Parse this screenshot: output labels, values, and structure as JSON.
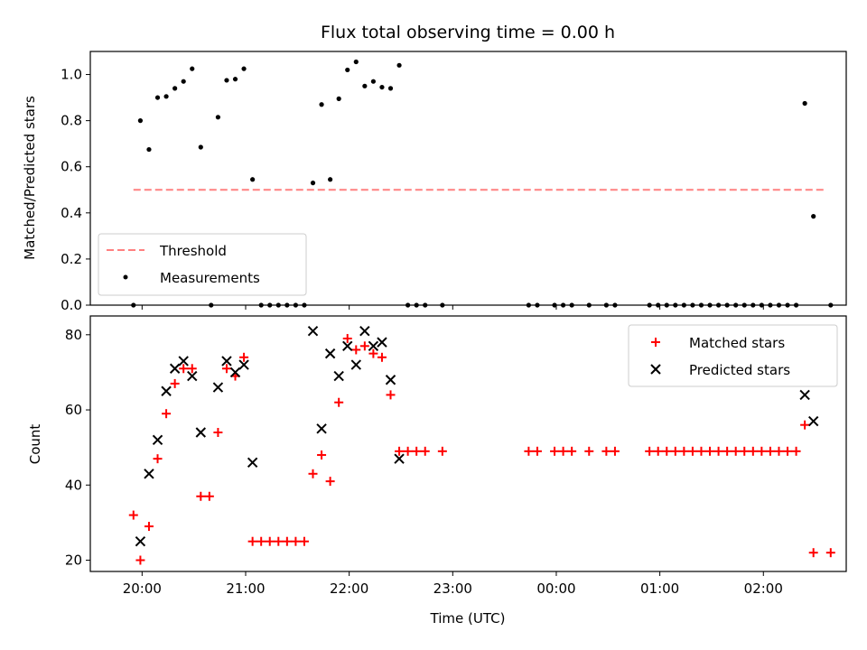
{
  "chart_data": [
    {
      "type": "scatter",
      "title": "Flux total observing time = 0.00 h",
      "xlabel": "",
      "ylabel": "Matched/Predicted stars",
      "ylim": [
        0,
        1.1
      ],
      "yticks": [
        0.0,
        0.2,
        0.4,
        0.6,
        0.8,
        1.0
      ],
      "ytick_labels": [
        "0.0",
        "0.2",
        "0.4",
        "0.6",
        "0.8",
        "1.0"
      ],
      "legend_position": "lower-left",
      "grid": false,
      "threshold": {
        "name": "Threshold",
        "value": 0.5,
        "x_start": "19:55",
        "x_end": "02:35",
        "color": "#ff8080",
        "style": "dashed"
      },
      "series": [
        {
          "name": "Measurements",
          "color": "#000000",
          "marker": "dot",
          "points": [
            [
              "19:55",
              0.0
            ],
            [
              "19:59",
              0.8
            ],
            [
              "20:04",
              0.675
            ],
            [
              "20:09",
              0.9
            ],
            [
              "20:14",
              0.905
            ],
            [
              "20:19",
              0.94
            ],
            [
              "20:24",
              0.97
            ],
            [
              "20:29",
              1.025
            ],
            [
              "20:34",
              0.685
            ],
            [
              "20:40",
              0.0
            ],
            [
              "20:44",
              0.815
            ],
            [
              "20:49",
              0.975
            ],
            [
              "20:54",
              0.98
            ],
            [
              "20:59",
              1.025
            ],
            [
              "21:04",
              0.545
            ],
            [
              "21:09",
              0.0
            ],
            [
              "21:14",
              0.0
            ],
            [
              "21:19",
              0.0
            ],
            [
              "21:24",
              0.0
            ],
            [
              "21:29",
              0.0
            ],
            [
              "21:34",
              0.0
            ],
            [
              "21:39",
              0.53
            ],
            [
              "21:44",
              0.87
            ],
            [
              "21:49",
              0.545
            ],
            [
              "21:54",
              0.895
            ],
            [
              "21:59",
              1.02
            ],
            [
              "22:04",
              1.055
            ],
            [
              "22:09",
              0.95
            ],
            [
              "22:14",
              0.97
            ],
            [
              "22:19",
              0.945
            ],
            [
              "22:24",
              0.94
            ],
            [
              "22:29",
              1.04
            ],
            [
              "22:34",
              0.0
            ],
            [
              "22:39",
              0.0
            ],
            [
              "22:44",
              0.0
            ],
            [
              "22:54",
              0.0
            ],
            [
              "23:44",
              0.0
            ],
            [
              "23:49",
              0.0
            ],
            [
              "23:59",
              0.0
            ],
            [
              "00:04",
              0.0
            ],
            [
              "00:09",
              0.0
            ],
            [
              "00:19",
              0.0
            ],
            [
              "00:29",
              0.0
            ],
            [
              "00:34",
              0.0
            ],
            [
              "00:54",
              0.0
            ],
            [
              "00:59",
              0.0
            ],
            [
              "01:04",
              0.0
            ],
            [
              "01:09",
              0.0
            ],
            [
              "01:14",
              0.0
            ],
            [
              "01:19",
              0.0
            ],
            [
              "01:24",
              0.0
            ],
            [
              "01:29",
              0.0
            ],
            [
              "01:34",
              0.0
            ],
            [
              "01:39",
              0.0
            ],
            [
              "01:44",
              0.0
            ],
            [
              "01:49",
              0.0
            ],
            [
              "01:54",
              0.0
            ],
            [
              "01:59",
              0.0
            ],
            [
              "02:04",
              0.0
            ],
            [
              "02:09",
              0.0
            ],
            [
              "02:14",
              0.0
            ],
            [
              "02:19",
              0.0
            ],
            [
              "02:24",
              0.875
            ],
            [
              "02:29",
              0.385
            ],
            [
              "02:39",
              0.0
            ]
          ]
        }
      ]
    },
    {
      "type": "scatter",
      "title": "",
      "xlabel": "Time (UTC)",
      "ylabel": "Count",
      "ylim": [
        17,
        85
      ],
      "yticks": [
        20,
        40,
        60,
        80
      ],
      "ytick_labels": [
        "20",
        "40",
        "60",
        "80"
      ],
      "xticks": [
        "20:00",
        "21:00",
        "22:00",
        "23:00",
        "00:00",
        "01:00",
        "02:00"
      ],
      "xtick_labels": [
        "20:00",
        "21:00",
        "22:00",
        "23:00",
        "00:00",
        "01:00",
        "02:00"
      ],
      "legend_position": "upper-right",
      "grid": false,
      "series": [
        {
          "name": "Matched stars",
          "color": "#ff0000",
          "marker": "plus",
          "points": [
            [
              "19:55",
              32
            ],
            [
              "19:59",
              20
            ],
            [
              "20:04",
              29
            ],
            [
              "20:09",
              47
            ],
            [
              "20:14",
              59
            ],
            [
              "20:19",
              67
            ],
            [
              "20:24",
              71
            ],
            [
              "20:29",
              71
            ],
            [
              "20:34",
              37
            ],
            [
              "20:39",
              37
            ],
            [
              "20:44",
              54
            ],
            [
              "20:49",
              71
            ],
            [
              "20:54",
              69
            ],
            [
              "20:59",
              74
            ],
            [
              "21:04",
              25
            ],
            [
              "21:09",
              25
            ],
            [
              "21:14",
              25
            ],
            [
              "21:19",
              25
            ],
            [
              "21:24",
              25
            ],
            [
              "21:29",
              25
            ],
            [
              "21:34",
              25
            ],
            [
              "21:39",
              43
            ],
            [
              "21:44",
              48
            ],
            [
              "21:49",
              41
            ],
            [
              "21:54",
              62
            ],
            [
              "21:59",
              79
            ],
            [
              "22:04",
              76
            ],
            [
              "22:09",
              77
            ],
            [
              "22:14",
              75
            ],
            [
              "22:19",
              74
            ],
            [
              "22:24",
              64
            ],
            [
              "22:29",
              49
            ],
            [
              "22:34",
              49
            ],
            [
              "22:39",
              49
            ],
            [
              "22:44",
              49
            ],
            [
              "22:54",
              49
            ],
            [
              "23:44",
              49
            ],
            [
              "23:49",
              49
            ],
            [
              "23:59",
              49
            ],
            [
              "00:04",
              49
            ],
            [
              "00:09",
              49
            ],
            [
              "00:19",
              49
            ],
            [
              "00:29",
              49
            ],
            [
              "00:34",
              49
            ],
            [
              "00:54",
              49
            ],
            [
              "00:59",
              49
            ],
            [
              "01:04",
              49
            ],
            [
              "01:09",
              49
            ],
            [
              "01:14",
              49
            ],
            [
              "01:19",
              49
            ],
            [
              "01:24",
              49
            ],
            [
              "01:29",
              49
            ],
            [
              "01:34",
              49
            ],
            [
              "01:39",
              49
            ],
            [
              "01:44",
              49
            ],
            [
              "01:49",
              49
            ],
            [
              "01:54",
              49
            ],
            [
              "01:59",
              49
            ],
            [
              "02:04",
              49
            ],
            [
              "02:09",
              49
            ],
            [
              "02:14",
              49
            ],
            [
              "02:19",
              49
            ],
            [
              "02:24",
              56
            ],
            [
              "02:29",
              22
            ],
            [
              "02:39",
              22
            ]
          ]
        },
        {
          "name": "Predicted stars",
          "color": "#000000",
          "marker": "x",
          "points": [
            [
              "19:59",
              25
            ],
            [
              "20:04",
              43
            ],
            [
              "20:09",
              52
            ],
            [
              "20:14",
              65
            ],
            [
              "20:19",
              71
            ],
            [
              "20:24",
              73
            ],
            [
              "20:29",
              69
            ],
            [
              "20:34",
              54
            ],
            [
              "20:44",
              66
            ],
            [
              "20:49",
              73
            ],
            [
              "20:54",
              70
            ],
            [
              "20:59",
              72
            ],
            [
              "21:04",
              46
            ],
            [
              "21:39",
              81
            ],
            [
              "21:44",
              55
            ],
            [
              "21:49",
              75
            ],
            [
              "21:54",
              69
            ],
            [
              "21:59",
              77
            ],
            [
              "22:04",
              72
            ],
            [
              "22:09",
              81
            ],
            [
              "22:14",
              77
            ],
            [
              "22:19",
              78
            ],
            [
              "22:24",
              68
            ],
            [
              "22:29",
              47
            ],
            [
              "02:24",
              64
            ],
            [
              "02:29",
              57
            ]
          ]
        }
      ]
    }
  ]
}
